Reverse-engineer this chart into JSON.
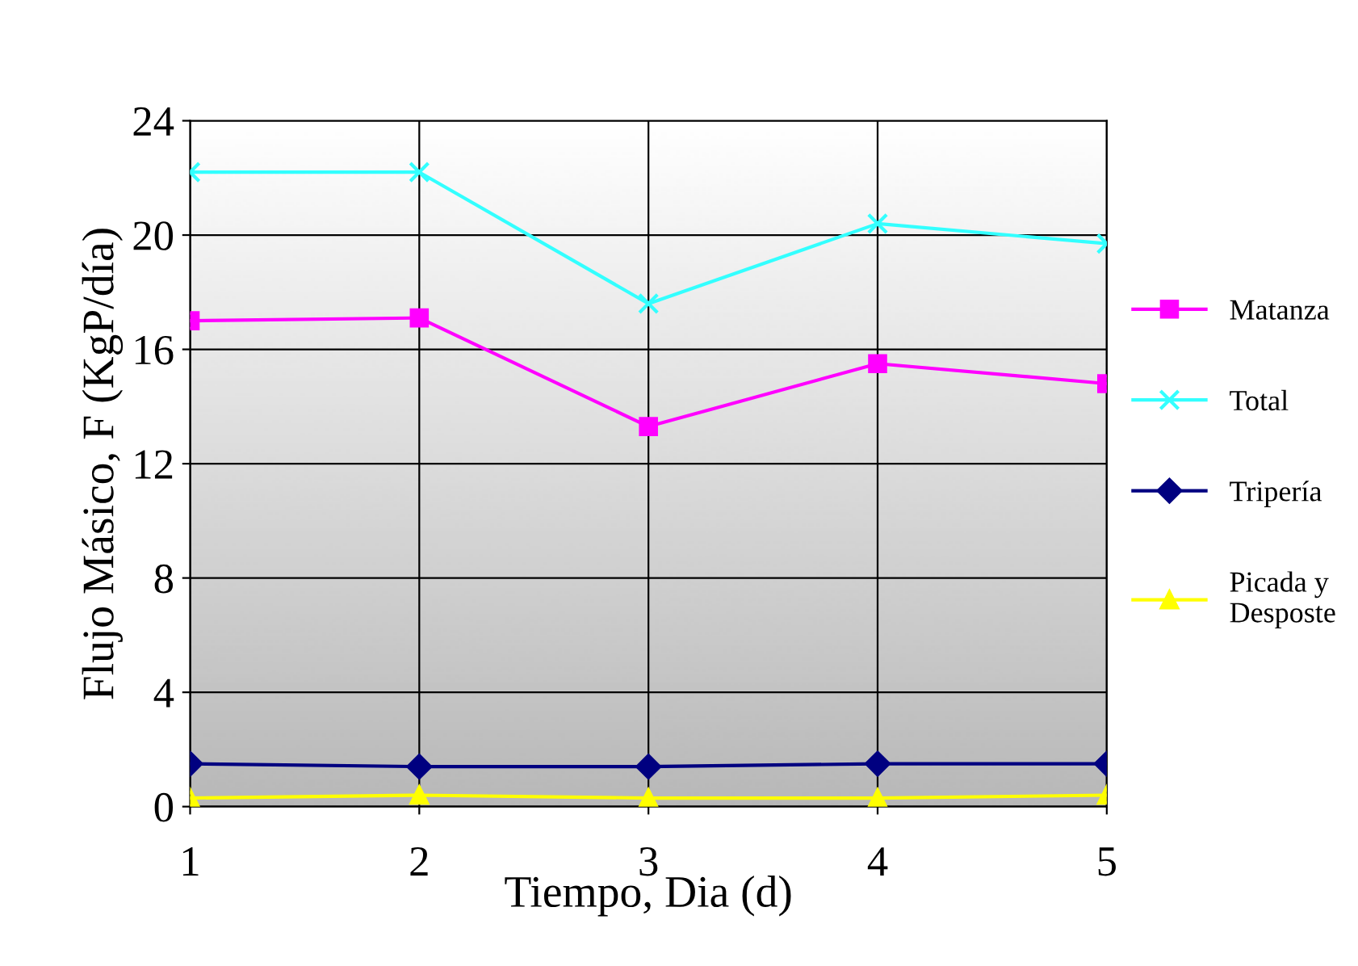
{
  "chart_data": {
    "type": "line",
    "xlabel": "Tiempo, Dia (d)",
    "ylabel": "Flujo Másico, F (KgP/día)",
    "x": [
      1,
      2,
      3,
      4,
      5
    ],
    "series": [
      {
        "name": "Matanza",
        "color": "#ff00ff",
        "marker": "square",
        "values": [
          17.0,
          17.1,
          13.3,
          15.5,
          14.8
        ]
      },
      {
        "name": "Total",
        "color": "#33ffff",
        "marker": "cross",
        "values": [
          22.2,
          22.2,
          17.6,
          20.4,
          19.7
        ]
      },
      {
        "name": "Tripería",
        "color": "#000080",
        "marker": "diamond",
        "values": [
          1.5,
          1.4,
          1.4,
          1.5,
          1.5
        ]
      },
      {
        "name": "Picada y\nDesposte",
        "color": "#ffff00",
        "marker": "triangle",
        "values": [
          0.3,
          0.4,
          0.3,
          0.3,
          0.4
        ]
      }
    ],
    "xlim": [
      1,
      5
    ],
    "xticks": [
      1,
      2,
      3,
      4,
      5
    ],
    "ylim": [
      0,
      24
    ],
    "yticks": [
      0,
      4,
      8,
      12,
      16,
      20,
      24
    ],
    "grid": true,
    "legend": "right",
    "line_style": "solid"
  }
}
